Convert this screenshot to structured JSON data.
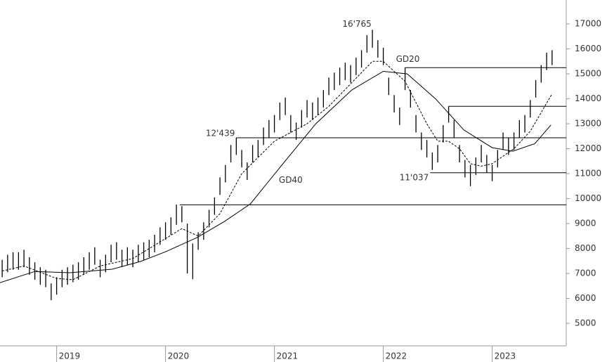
{
  "chart_data": {
    "type": "hlbar",
    "x": [
      2018.5,
      2018.55,
      2018.6,
      2018.65,
      2018.7,
      2018.75,
      2018.8,
      2018.85,
      2018.9,
      2018.95,
      2019.0,
      2019.05,
      2019.1,
      2019.15,
      2019.2,
      2019.25,
      2019.3,
      2019.35,
      2019.4,
      2019.45,
      2019.5,
      2019.55,
      2019.6,
      2019.65,
      2019.7,
      2019.75,
      2019.8,
      2019.85,
      2019.9,
      2019.95,
      2020.0,
      2020.05,
      2020.1,
      2020.15,
      2020.2,
      2020.25,
      2020.3,
      2020.35,
      2020.4,
      2020.45,
      2020.5,
      2020.55,
      2020.6,
      2020.65,
      2020.7,
      2020.75,
      2020.8,
      2020.85,
      2020.9,
      2020.95,
      2021.0,
      2021.05,
      2021.1,
      2021.15,
      2021.2,
      2021.25,
      2021.3,
      2021.35,
      2021.4,
      2021.45,
      2021.5,
      2021.55,
      2021.6,
      2021.65,
      2021.7,
      2021.75,
      2021.8,
      2021.85,
      2021.9,
      2021.95,
      2022.0,
      2022.05,
      2022.1,
      2022.15,
      2022.2,
      2022.25,
      2022.3,
      2022.35,
      2022.4,
      2022.45,
      2022.5,
      2022.55,
      2022.6,
      2022.65,
      2022.7,
      2022.75,
      2022.8,
      2022.85,
      2022.9,
      2022.95,
      2023.0,
      2023.05,
      2023.1,
      2023.15,
      2023.2,
      2023.25,
      2023.3,
      2023.35,
      2023.4,
      2023.45,
      2023.5,
      2023.55
    ],
    "high": [
      7550,
      7750,
      7850,
      7850,
      7950,
      7650,
      7450,
      7250,
      7150,
      6600,
      6850,
      7150,
      7250,
      7350,
      7450,
      7650,
      7850,
      8050,
      7550,
      7750,
      8150,
      8250,
      7950,
      8050,
      7950,
      8150,
      8250,
      8350,
      8550,
      8850,
      9050,
      9250,
      9760,
      9700,
      9000,
      8200,
      8650,
      9050,
      9550,
      10050,
      10850,
      11350,
      12150,
      12439,
      11950,
      11450,
      12150,
      12350,
      12850,
      13150,
      13350,
      13850,
      14050,
      13350,
      13050,
      13550,
      13950,
      13850,
      14050,
      14350,
      14850,
      15050,
      15250,
      15450,
      15350,
      15650,
      15950,
      16550,
      16765,
      16350,
      16050,
      14850,
      14150,
      13650,
      15250,
      14350,
      13350,
      12650,
      12350,
      11850,
      12150,
      12950,
      13700,
      13150,
      12150,
      11550,
      11350,
      11650,
      12150,
      11750,
      11350,
      11950,
      12650,
      12450,
      12650,
      13150,
      13350,
      13950,
      14750,
      15350,
      15850,
      15950
    ],
    "low": [
      6850,
      7050,
      7150,
      7150,
      7250,
      6950,
      6750,
      6550,
      6450,
      5930,
      6150,
      6450,
      6550,
      6650,
      6750,
      6950,
      7150,
      7350,
      6850,
      7050,
      7450,
      7550,
      7250,
      7350,
      7250,
      7450,
      7550,
      7650,
      7850,
      8150,
      8350,
      8550,
      8950,
      9050,
      7000,
      6770,
      7950,
      8350,
      8850,
      9350,
      10150,
      10650,
      11450,
      11750,
      11250,
      10750,
      11450,
      11650,
      12150,
      12450,
      12650,
      13150,
      13350,
      12650,
      12350,
      12850,
      13250,
      13150,
      13350,
      13650,
      14150,
      14350,
      14550,
      14750,
      14650,
      14950,
      15250,
      15850,
      16050,
      15650,
      15350,
      14150,
      13450,
      12950,
      14350,
      13650,
      12650,
      11950,
      11650,
      11150,
      11450,
      12250,
      13050,
      12450,
      11450,
      10850,
      10500,
      10950,
      11450,
      11050,
      10700,
      11250,
      11950,
      11750,
      11950,
      12450,
      12650,
      13250,
      14050,
      14650,
      15150,
      15350
    ],
    "color": "#000000",
    "moving_averages": [
      {
        "name": "GD20",
        "dashed": true,
        "x": [
          2018.5,
          2018.7,
          2019.0,
          2019.15,
          2019.4,
          2019.7,
          2020.0,
          2020.15,
          2020.3,
          2020.5,
          2020.7,
          2021.0,
          2021.3,
          2021.5,
          2021.7,
          2021.9,
          2022.0,
          2022.2,
          2022.4,
          2022.5,
          2022.6,
          2022.7,
          2022.8,
          2022.9,
          2023.0,
          2023.2,
          2023.35,
          2023.55
        ],
        "values": [
          7100,
          7300,
          6800,
          6750,
          7300,
          7600,
          8400,
          8800,
          8500,
          9400,
          11000,
          12300,
          13000,
          13700,
          14600,
          15500,
          15500,
          14700,
          13000,
          12300,
          12300,
          12000,
          11400,
          11300,
          11400,
          12000,
          12700,
          14200
        ]
      },
      {
        "name": "GD40",
        "dashed": false,
        "x": [
          2018.48,
          2018.8,
          2019.12,
          2019.51,
          2019.77,
          2020.0,
          2020.29,
          2020.54,
          2020.78,
          2021.06,
          2021.38,
          2021.71,
          2022.0,
          2022.22,
          2022.48,
          2022.74,
          2023.0,
          2023.19,
          2023.39,
          2023.54
        ],
        "values": [
          6630,
          7080,
          7030,
          7170,
          7480,
          7870,
          8440,
          9080,
          9790,
          11300,
          13000,
          14350,
          15100,
          15000,
          14000,
          12750,
          12040,
          11900,
          12200,
          12950
        ]
      }
    ],
    "levels": [
      {
        "value": 15250,
        "from": 2022.2
      },
      {
        "value": 13700,
        "from": 2022.6
      },
      {
        "value": 12439,
        "label": "12'439",
        "from": 2020.65
      },
      {
        "value": 11037,
        "label": "11'037",
        "from": 2022.43
      },
      {
        "value": 9750,
        "from": 2020.13
      }
    ],
    "annotations": [
      {
        "text": "16'765",
        "x": 2021.9,
        "y": 16765
      }
    ],
    "xlim": [
      2018.48,
      2023.68
    ],
    "ylim": [
      4100,
      17960
    ],
    "xticks": [
      2019,
      2020,
      2021,
      2022,
      2023
    ],
    "yticks": [
      5000,
      6000,
      7000,
      8000,
      9000,
      10000,
      11000,
      12000,
      13000,
      14000,
      15000,
      16000,
      17000
    ]
  }
}
